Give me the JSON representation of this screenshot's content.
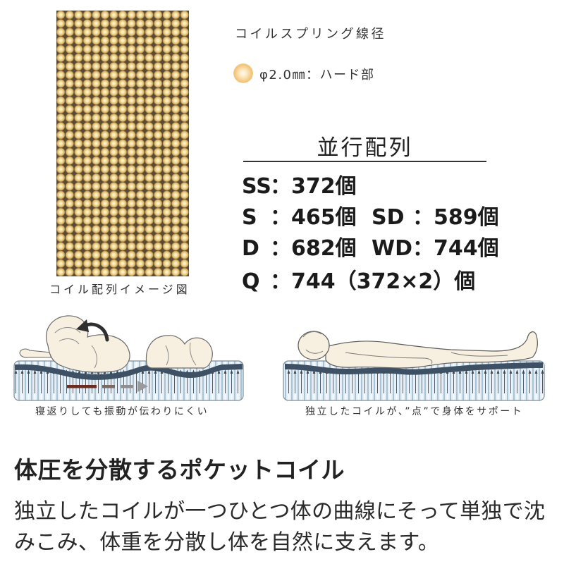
{
  "coil_array": {
    "caption": "コイル配列イメージ図"
  },
  "wire_diameter": {
    "title": "コイルスプリング線径",
    "icon": "coil-icon",
    "spec": "φ2.0㎜：ハード部"
  },
  "arrangement": {
    "title": "並行配列",
    "counts": [
      {
        "size": "SS",
        "count": "：372個"
      },
      {
        "size": "S",
        "count": "：465個"
      },
      {
        "size": "SD",
        "count": "：589個"
      },
      {
        "size": "D",
        "count": "：682個"
      },
      {
        "size": "WD",
        "count": "：744個"
      },
      {
        "size": "Q",
        "count": "：744（372×2）個"
      }
    ]
  },
  "illustrations": [
    {
      "caption": "寝返りしても振動が伝わりにくい"
    },
    {
      "caption": "独立したコイルが、”点”で身体をサポート"
    }
  ],
  "feature": {
    "heading": "体圧を分散するポケットコイル",
    "description_lines": [
      "独立したコイルが一つひとつ体の曲線にそって単独で沈",
      "みこみ、体重を分散し体を自然に支えます。"
    ]
  },
  "colors": {
    "coil_gold": "#f3dc9a",
    "coil_background": "#5b4a33",
    "mattress_blue": "#e6f0f7",
    "mattress_band": "#3e5064",
    "body_cream": "#f7efdf",
    "arrow_brown": "#6a2d1f",
    "arrow_gray": "#8f8f8f"
  }
}
